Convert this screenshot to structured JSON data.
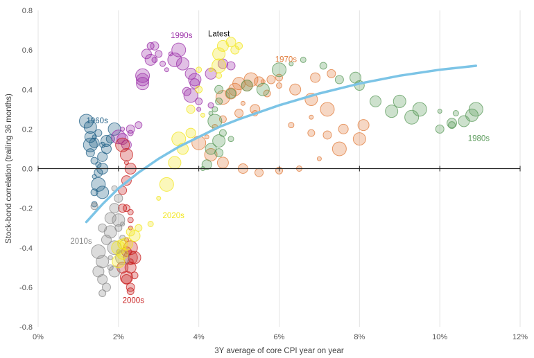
{
  "chart_data": {
    "type": "scatter",
    "xlabel": "3Y average of core CPI year on year",
    "ylabel": "Stock-bond correlation (trailing 36 months)",
    "xlim": [
      0,
      12
    ],
    "ylim": [
      -0.8,
      0.8
    ],
    "x_ticks": [
      "0%",
      "2%",
      "4%",
      "6%",
      "8%",
      "10%",
      "12%"
    ],
    "y_ticks": [
      "0.8",
      "0.6",
      "0.4",
      "0.2",
      "0.0",
      "-0.2",
      "-0.4",
      "-0.6",
      "-0.8"
    ],
    "grid": "vertical",
    "zero_line": true,
    "series": [
      {
        "name": "1960s",
        "color": "#1f5f86",
        "label_at": [
          1.2,
          0.23
        ],
        "points": [
          [
            1.2,
            0.24
          ],
          [
            1.3,
            0.21
          ],
          [
            1.3,
            0.16
          ],
          [
            1.4,
            0.13
          ],
          [
            1.3,
            0.08
          ],
          [
            1.4,
            0.04
          ],
          [
            1.5,
            0.02
          ],
          [
            1.4,
            -0.04
          ],
          [
            1.5,
            -0.08
          ],
          [
            1.6,
            -0.12
          ],
          [
            1.6,
            0.0
          ],
          [
            1.7,
            0.1
          ],
          [
            1.8,
            0.15
          ],
          [
            1.5,
            0.18
          ],
          [
            1.6,
            0.12
          ],
          [
            1.4,
            0.16
          ],
          [
            1.3,
            0.12
          ],
          [
            1.9,
            0.2
          ],
          [
            1.7,
            0.14
          ],
          [
            1.6,
            0.06
          ],
          [
            1.5,
            -0.02
          ],
          [
            1.4,
            -0.12
          ],
          [
            1.4,
            -0.18
          ]
        ]
      },
      {
        "name": "1970s",
        "color": "#e07b3a",
        "label_at": [
          5.9,
          0.54
        ],
        "points": [
          [
            4.6,
            0.36
          ],
          [
            4.9,
            0.4
          ],
          [
            5.2,
            0.42
          ],
          [
            5.5,
            0.44
          ],
          [
            5.8,
            0.45
          ],
          [
            6.0,
            0.46
          ],
          [
            6.0,
            0.42
          ],
          [
            5.6,
            0.44
          ],
          [
            5.3,
            0.45
          ],
          [
            5.0,
            0.43
          ],
          [
            4.8,
            0.38
          ],
          [
            5.4,
            0.3
          ],
          [
            5.0,
            0.28
          ],
          [
            4.6,
            0.25
          ],
          [
            4.4,
            0.21
          ],
          [
            4.2,
            0.16
          ],
          [
            4.0,
            0.13
          ],
          [
            4.3,
            0.07
          ],
          [
            4.6,
            0.03
          ],
          [
            5.1,
            0.0
          ],
          [
            5.5,
            -0.02
          ],
          [
            6.0,
            -0.01
          ],
          [
            6.5,
            0.0
          ],
          [
            7.0,
            0.05
          ],
          [
            7.5,
            0.1
          ],
          [
            8.0,
            0.15
          ],
          [
            8.1,
            0.22
          ],
          [
            7.6,
            0.2
          ],
          [
            7.2,
            0.17
          ],
          [
            6.8,
            0.18
          ],
          [
            6.3,
            0.22
          ],
          [
            6.8,
            0.26
          ],
          [
            7.2,
            0.3
          ],
          [
            6.8,
            0.35
          ],
          [
            6.4,
            0.4
          ],
          [
            6.9,
            0.46
          ],
          [
            7.3,
            0.48
          ],
          [
            5.7,
            0.38
          ],
          [
            5.4,
            0.28
          ],
          [
            5.1,
            0.33
          ]
        ]
      },
      {
        "name": "1980s",
        "color": "#5a9a5a",
        "label_at": [
          10.7,
          0.14
        ],
        "points": [
          [
            10.9,
            0.3
          ],
          [
            10.8,
            0.27
          ],
          [
            10.6,
            0.24
          ],
          [
            10.3,
            0.23
          ],
          [
            10.0,
            0.2
          ],
          [
            10.3,
            0.22
          ],
          [
            10.4,
            0.28
          ],
          [
            10.0,
            0.29
          ],
          [
            9.5,
            0.3
          ],
          [
            9.0,
            0.34
          ],
          [
            8.4,
            0.34
          ],
          [
            8.0,
            0.42
          ],
          [
            7.5,
            0.45
          ],
          [
            7.1,
            0.52
          ],
          [
            6.6,
            0.55
          ],
          [
            6.3,
            0.53
          ],
          [
            6.0,
            0.5
          ],
          [
            5.6,
            0.4
          ],
          [
            5.2,
            0.42
          ],
          [
            4.8,
            0.38
          ],
          [
            4.5,
            0.4
          ],
          [
            4.5,
            0.34
          ],
          [
            4.4,
            0.3
          ],
          [
            4.3,
            0.28
          ],
          [
            4.4,
            0.24
          ],
          [
            4.5,
            0.14
          ],
          [
            4.3,
            0.1
          ],
          [
            4.2,
            0.02
          ],
          [
            4.5,
            0.08
          ],
          [
            4.6,
            0.18
          ],
          [
            4.8,
            0.15
          ],
          [
            4.1,
            0.0
          ],
          [
            9.3,
            0.26
          ],
          [
            8.8,
            0.29
          ],
          [
            7.9,
            0.46
          ]
        ]
      },
      {
        "name": "1990s",
        "color": "#9b2fa8",
        "label_at": [
          3.3,
          0.66
        ],
        "points": [
          [
            2.6,
            0.47
          ],
          [
            2.6,
            0.45
          ],
          [
            2.8,
            0.55
          ],
          [
            2.7,
            0.58
          ],
          [
            2.9,
            0.62
          ],
          [
            3.0,
            0.58
          ],
          [
            3.1,
            0.53
          ],
          [
            3.2,
            0.5
          ],
          [
            3.4,
            0.55
          ],
          [
            3.6,
            0.53
          ],
          [
            3.8,
            0.48
          ],
          [
            3.9,
            0.43
          ],
          [
            3.7,
            0.39
          ],
          [
            4.0,
            0.34
          ],
          [
            4.3,
            0.32
          ],
          [
            4.0,
            0.3
          ],
          [
            3.8,
            0.37
          ],
          [
            3.9,
            0.45
          ],
          [
            4.3,
            0.48
          ],
          [
            4.6,
            0.53
          ],
          [
            4.8,
            0.52
          ],
          [
            2.8,
            0.62
          ],
          [
            2.9,
            0.55
          ],
          [
            3.3,
            0.58
          ],
          [
            3.5,
            0.6
          ],
          [
            2.6,
            0.43
          ],
          [
            2.1,
            0.15
          ],
          [
            2.2,
            0.12
          ],
          [
            2.3,
            0.2
          ],
          [
            2.5,
            0.22
          ],
          [
            2.3,
            0.18
          ],
          [
            2.1,
            0.2
          ],
          [
            2.0,
            0.16
          ]
        ]
      },
      {
        "name": "2000s",
        "color": "#c81e1e",
        "label_at": [
          2.1,
          -0.68
        ],
        "points": [
          [
            2.1,
            0.12
          ],
          [
            2.2,
            0.07
          ],
          [
            2.3,
            0.0
          ],
          [
            2.2,
            -0.06
          ],
          [
            2.1,
            -0.11
          ],
          [
            2.2,
            -0.2
          ],
          [
            2.3,
            -0.26
          ],
          [
            2.3,
            -0.3
          ],
          [
            2.3,
            -0.4
          ],
          [
            2.4,
            -0.45
          ],
          [
            2.3,
            -0.5
          ],
          [
            2.2,
            -0.56
          ],
          [
            2.3,
            -0.6
          ],
          [
            2.4,
            -0.54
          ],
          [
            2.3,
            -0.47
          ],
          [
            2.2,
            -0.36
          ],
          [
            2.3,
            -0.45
          ],
          [
            2.2,
            -0.55
          ],
          [
            2.1,
            -0.5
          ],
          [
            2.2,
            -0.42
          ],
          [
            2.1,
            -0.2
          ],
          [
            2.3,
            -0.62
          ],
          [
            2.3,
            -0.22
          ],
          [
            2.2,
            0.03
          ]
        ]
      },
      {
        "name": "2010s",
        "color": "#8a8a8a",
        "label_at": [
          0.8,
          -0.38
        ],
        "points": [
          [
            1.5,
            -0.42
          ],
          [
            1.6,
            -0.47
          ],
          [
            1.5,
            -0.52
          ],
          [
            1.6,
            -0.56
          ],
          [
            1.7,
            -0.6
          ],
          [
            1.6,
            -0.63
          ],
          [
            1.8,
            -0.5
          ],
          [
            1.8,
            -0.45
          ],
          [
            1.9,
            -0.4
          ],
          [
            1.8,
            -0.32
          ],
          [
            1.8,
            -0.25
          ],
          [
            1.9,
            -0.2
          ],
          [
            2.0,
            -0.15
          ],
          [
            2.0,
            -0.3
          ],
          [
            2.1,
            -0.35
          ],
          [
            2.0,
            -0.42
          ],
          [
            2.1,
            -0.45
          ],
          [
            2.0,
            -0.26
          ],
          [
            1.9,
            -0.52
          ],
          [
            1.7,
            -0.36
          ],
          [
            1.6,
            -0.3
          ],
          [
            1.4,
            -0.19
          ],
          [
            1.9,
            -0.1
          ],
          [
            2.1,
            -0.28
          ]
        ]
      },
      {
        "name": "2020s",
        "color": "#f2e61a",
        "label_at": [
          3.1,
          -0.25
        ],
        "points": [
          [
            2.0,
            -0.4
          ],
          [
            2.0,
            -0.47
          ],
          [
            2.1,
            -0.43
          ],
          [
            2.1,
            -0.38
          ],
          [
            2.3,
            -0.32
          ],
          [
            2.5,
            -0.3
          ],
          [
            2.8,
            -0.28
          ],
          [
            3.0,
            -0.15
          ],
          [
            3.2,
            -0.08
          ],
          [
            3.4,
            0.03
          ],
          [
            3.6,
            0.1
          ],
          [
            3.8,
            0.18
          ],
          [
            3.8,
            0.3
          ],
          [
            4.0,
            0.4
          ],
          [
            4.0,
            0.5
          ],
          [
            4.3,
            0.5
          ],
          [
            4.5,
            0.52
          ],
          [
            4.5,
            0.58
          ],
          [
            4.6,
            0.62
          ],
          [
            4.8,
            0.64
          ],
          [
            4.9,
            0.6
          ],
          [
            5.0,
            0.62
          ],
          [
            4.5,
            0.47
          ],
          [
            4.1,
            0.27
          ],
          [
            3.5,
            0.15
          ],
          [
            2.2,
            -0.38
          ],
          [
            2.4,
            -0.34
          ]
        ]
      }
    ],
    "trend_line": {
      "color": "#7cc4e6",
      "points": [
        [
          1.2,
          -0.27
        ],
        [
          1.6,
          -0.18
        ],
        [
          2.0,
          -0.1
        ],
        [
          2.5,
          -0.02
        ],
        [
          3.0,
          0.05
        ],
        [
          3.5,
          0.11
        ],
        [
          4.0,
          0.16
        ],
        [
          4.5,
          0.21
        ],
        [
          5.0,
          0.25
        ],
        [
          6.0,
          0.32
        ],
        [
          7.0,
          0.38
        ],
        [
          8.0,
          0.43
        ],
        [
          9.0,
          0.47
        ],
        [
          10.0,
          0.5
        ],
        [
          10.9,
          0.52
        ]
      ]
    },
    "annotations": [
      {
        "text": "Latest",
        "x": 4.5,
        "y": 0.62
      }
    ],
    "colors": {
      "tick": "#555555",
      "grid": "#e3e3e3",
      "axis": "#222222"
    }
  }
}
